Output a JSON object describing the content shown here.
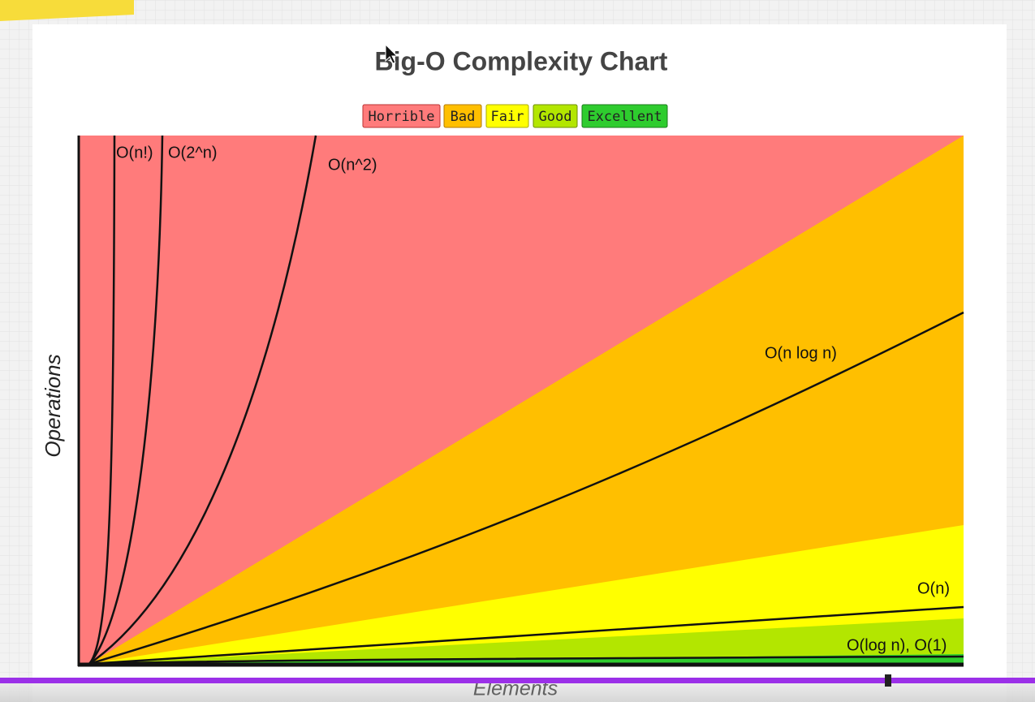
{
  "title": "Big-O Complexity Chart",
  "legend": [
    "Horrible",
    "Bad",
    "Fair",
    "Good",
    "Excellent"
  ],
  "curves": [
    "O(n!)",
    "O(2^n)",
    "O(n^2)",
    "O(n log n)",
    "O(n)",
    "O(log n), O(1)"
  ],
  "axes": {
    "y": "Operations",
    "x": "Elements"
  }
}
